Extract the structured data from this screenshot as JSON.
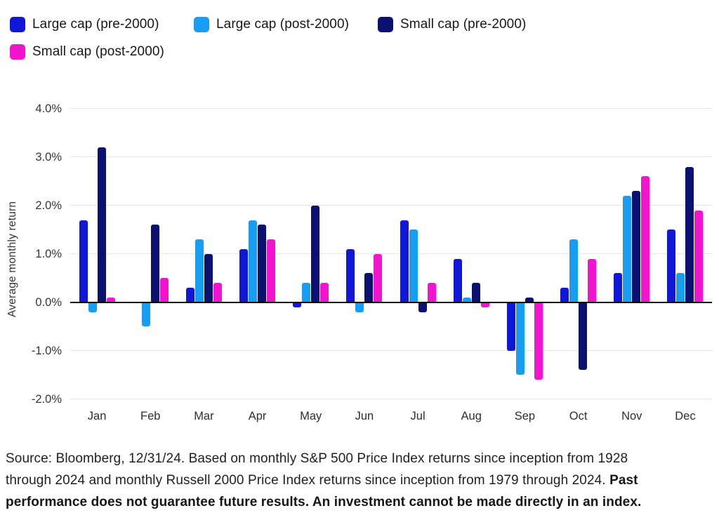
{
  "chart_data": {
    "type": "bar",
    "title": "",
    "xlabel": "",
    "ylabel": "Average monthly return",
    "grid": true,
    "legend_position": "top-left",
    "ylim": [
      -2.0,
      4.0
    ],
    "yticks": [
      {
        "value": 4,
        "label": "4.0%"
      },
      {
        "value": 3,
        "label": "3.0%"
      },
      {
        "value": 2,
        "label": "2.0%"
      },
      {
        "value": 1,
        "label": "1.0%"
      },
      {
        "value": 0,
        "label": "0.0%"
      },
      {
        "value": -1,
        "label": "-1.0%"
      },
      {
        "value": -2,
        "label": "-2.0%"
      }
    ],
    "categories": [
      "Jan",
      "Feb",
      "Mar",
      "Apr",
      "May",
      "Jun",
      "Jul",
      "Aug",
      "Sep",
      "Oct",
      "Nov",
      "Dec"
    ],
    "series": [
      {
        "name": "Large cap (pre-2000)",
        "color": "#1117d6",
        "values": [
          1.7,
          0.0,
          0.3,
          1.1,
          -0.1,
          1.1,
          1.7,
          0.9,
          -1.0,
          0.3,
          0.6,
          1.5
        ]
      },
      {
        "name": "Large cap (post-2000)",
        "color": "#179df1",
        "values": [
          -0.2,
          -0.5,
          1.3,
          1.7,
          0.4,
          -0.2,
          1.5,
          0.1,
          -1.5,
          1.3,
          2.2,
          0.6
        ]
      },
      {
        "name": "Small cap (pre-2000)",
        "color": "#0b1170",
        "values": [
          3.2,
          1.6,
          1.0,
          1.6,
          2.0,
          0.6,
          -0.2,
          0.4,
          0.1,
          -1.4,
          2.3,
          2.8
        ]
      },
      {
        "name": "Small cap (post-2000)",
        "color": "#f214cf",
        "values": [
          0.1,
          0.5,
          0.4,
          1.3,
          0.4,
          1.0,
          0.4,
          -0.1,
          -1.6,
          0.9,
          2.6,
          1.9
        ]
      }
    ]
  },
  "footer": {
    "source_text": "Source: Bloomberg, 12/31/24. Based on monthly S&P 500 Price Index returns since inception from 1928 through 2024 and monthly Russell 2000 Price Index returns since inception from 1979 through 2024. ",
    "disclaimer_bold": "Past performance does not guarantee future results. An investment cannot be made directly in an index."
  }
}
